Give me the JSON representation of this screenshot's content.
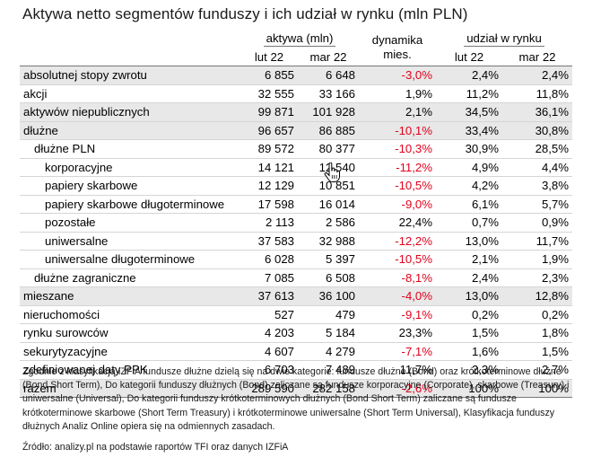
{
  "title": "Aktywa netto segmentów funduszy i ich udział w rynku (mln PLN)",
  "header": {
    "group_assets": "aktywa (mln)",
    "group_dynamics_line1": "dynamika",
    "group_dynamics_line2": "mies.",
    "group_share": "udział w rynku",
    "col_lut": "lut 22",
    "col_mar": "mar 22",
    "col_share_lut": "lut 22",
    "col_share_mar": "mar 22"
  },
  "rows": [
    {
      "label": "absolutnej stopy zwrotu",
      "level": 0,
      "shaded": true,
      "lut": "6 855",
      "mar": "6 648",
      "dyn": "-3,0%",
      "neg": true,
      "s_lut": "2,4%",
      "s_mar": "2,4%"
    },
    {
      "label": "akcji",
      "level": 0,
      "shaded": false,
      "lut": "32 555",
      "mar": "33 166",
      "dyn": "1,9%",
      "neg": false,
      "s_lut": "11,2%",
      "s_mar": "11,8%"
    },
    {
      "label": "aktywów niepublicznych",
      "level": 0,
      "shaded": true,
      "lut": "99 871",
      "mar": "101 928",
      "dyn": "2,1%",
      "neg": false,
      "s_lut": "34,5%",
      "s_mar": "36,1%"
    },
    {
      "label": "dłużne",
      "level": 0,
      "shaded": true,
      "lut": "96 657",
      "mar": "86 885",
      "dyn": "-10,1%",
      "neg": true,
      "s_lut": "33,4%",
      "s_mar": "30,8%"
    },
    {
      "label": "dłużne PLN",
      "level": 1,
      "shaded": false,
      "lut": "89 572",
      "mar": "80 377",
      "dyn": "-10,3%",
      "neg": true,
      "s_lut": "30,9%",
      "s_mar": "28,5%"
    },
    {
      "label": "korporacyjne",
      "level": 2,
      "shaded": false,
      "lut": "14 121",
      "mar": "12 540",
      "dyn": "-11,2%",
      "neg": true,
      "s_lut": "4,9%",
      "s_mar": "4,4%"
    },
    {
      "label": "papiery skarbowe",
      "level": 2,
      "shaded": false,
      "lut": "12 129",
      "mar": "10 851",
      "dyn": "-10,5%",
      "neg": true,
      "s_lut": "4,2%",
      "s_mar": "3,8%"
    },
    {
      "label": "papiery skarbowe długoterminowe",
      "level": 2,
      "shaded": false,
      "lut": "17 598",
      "mar": "16 014",
      "dyn": "-9,0%",
      "neg": true,
      "s_lut": "6,1%",
      "s_mar": "5,7%"
    },
    {
      "label": "pozostałe",
      "level": 2,
      "shaded": false,
      "lut": "2 113",
      "mar": "2 586",
      "dyn": "22,4%",
      "neg": false,
      "s_lut": "0,7%",
      "s_mar": "0,9%"
    },
    {
      "label": "uniwersalne",
      "level": 2,
      "shaded": false,
      "lut": "37 583",
      "mar": "32 988",
      "dyn": "-12,2%",
      "neg": true,
      "s_lut": "13,0%",
      "s_mar": "11,7%"
    },
    {
      "label": "uniwersalne długoterminowe",
      "level": 2,
      "shaded": false,
      "lut": "6 028",
      "mar": "5 397",
      "dyn": "-10,5%",
      "neg": true,
      "s_lut": "2,1%",
      "s_mar": "1,9%"
    },
    {
      "label": "dłużne zagraniczne",
      "level": 1,
      "shaded": false,
      "lut": "7 085",
      "mar": "6 508",
      "dyn": "-8,1%",
      "neg": true,
      "s_lut": "2,4%",
      "s_mar": "2,3%"
    },
    {
      "label": "mieszane",
      "level": 0,
      "shaded": true,
      "lut": "37 613",
      "mar": "36 100",
      "dyn": "-4,0%",
      "neg": true,
      "s_lut": "13,0%",
      "s_mar": "12,8%"
    },
    {
      "label": "nieruchomości",
      "level": 0,
      "shaded": false,
      "lut": "527",
      "mar": "479",
      "dyn": "-9,1%",
      "neg": true,
      "s_lut": "0,2%",
      "s_mar": "0,2%"
    },
    {
      "label": "rynku surowców",
      "level": 0,
      "shaded": false,
      "lut": "4 203",
      "mar": "5 184",
      "dyn": "23,3%",
      "neg": false,
      "s_lut": "1,5%",
      "s_mar": "1,8%"
    },
    {
      "label": "sekurytyzacyjne",
      "level": 0,
      "shaded": false,
      "lut": "4 607",
      "mar": "4 279",
      "dyn": "-7,1%",
      "neg": true,
      "s_lut": "1,6%",
      "s_mar": "1,5%"
    },
    {
      "label": "zdefiniowanej daty PPK",
      "level": 0,
      "shaded": false,
      "lut": "6 703",
      "mar": "7 489",
      "dyn": "11,7%",
      "neg": false,
      "s_lut": "2,3%",
      "s_mar": "2,7%"
    },
    {
      "label": "razem",
      "level": 0,
      "shaded": true,
      "lut": "289 590",
      "mar": "282 158",
      "dyn": "-2,6%",
      "neg": true,
      "s_lut": "100%",
      "s_mar": "100%"
    }
  ],
  "notes": "Zgodnie z klasyfikacją IZFiA fundusze dłużne dzielą się na dwie kategorie: fundusze dłużne (Bond) oraz krótkoterminowe dłużne (Bond Short Term), Do kategorii funduszy dłużnych (Bond) zaliczane są fundusze korporacyjne (Corporate), skarbowe (Treasury) i uniwersalne (Universal), Do kategorii funduszy krótkoterminowych dłużnych (Bond Short Term) zaliczane są fundusze krótkoterminowe skarbowe (Short Term Treasury) i krótkoterminowe uniwersalne (Short Term Universal), Klasyfikacja funduszy dłużnych Analiz Online opiera się na odmiennych zasadach.",
  "source": "Źródło: analizy.pl na podstawie raportów TFI oraz danych IZFiA",
  "cursor_icon": "hand-pointer-icon"
}
